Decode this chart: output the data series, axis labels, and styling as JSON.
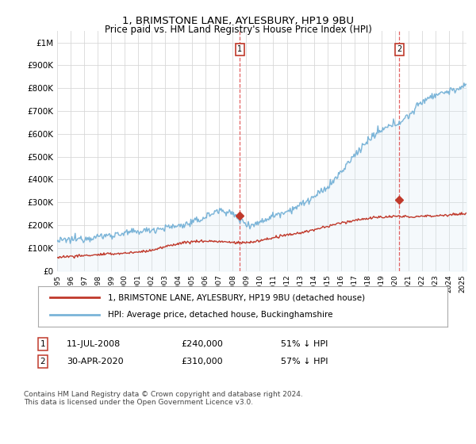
{
  "title": "1, BRIMSTONE LANE, AYLESBURY, HP19 9BU",
  "subtitle": "Price paid vs. HM Land Registry's House Price Index (HPI)",
  "ylabel_ticks": [
    "£0",
    "£100K",
    "£200K",
    "£300K",
    "£400K",
    "£500K",
    "£600K",
    "£700K",
    "£800K",
    "£900K",
    "£1M"
  ],
  "ytick_values": [
    0,
    100000,
    200000,
    300000,
    400000,
    500000,
    600000,
    700000,
    800000,
    900000,
    1000000
  ],
  "ylim": [
    0,
    1050000
  ],
  "hpi_color": "#7ab4d8",
  "hpi_fill_color": "#daeaf5",
  "price_color": "#c0392b",
  "vline_color": "#e05050",
  "grid_color": "#d8d8d8",
  "sale1_date_num": 2008.53,
  "sale1_price": 240000,
  "sale1_label": "1",
  "sale2_date_num": 2020.33,
  "sale2_price": 310000,
  "sale2_label": "2",
  "legend_line1": "1, BRIMSTONE LANE, AYLESBURY, HP19 9BU (detached house)",
  "legend_line2": "HPI: Average price, detached house, Buckinghamshire",
  "ann1_num": "1",
  "ann1_date": "11-JUL-2008",
  "ann1_price": "£240,000",
  "ann1_hpi": "51% ↓ HPI",
  "ann2_num": "2",
  "ann2_date": "30-APR-2020",
  "ann2_price": "£310,000",
  "ann2_hpi": "57% ↓ HPI",
  "footer": "Contains HM Land Registry data © Crown copyright and database right 2024.\nThis data is licensed under the Open Government Licence v3.0.",
  "xmin": 1995.0,
  "xmax": 2025.3
}
